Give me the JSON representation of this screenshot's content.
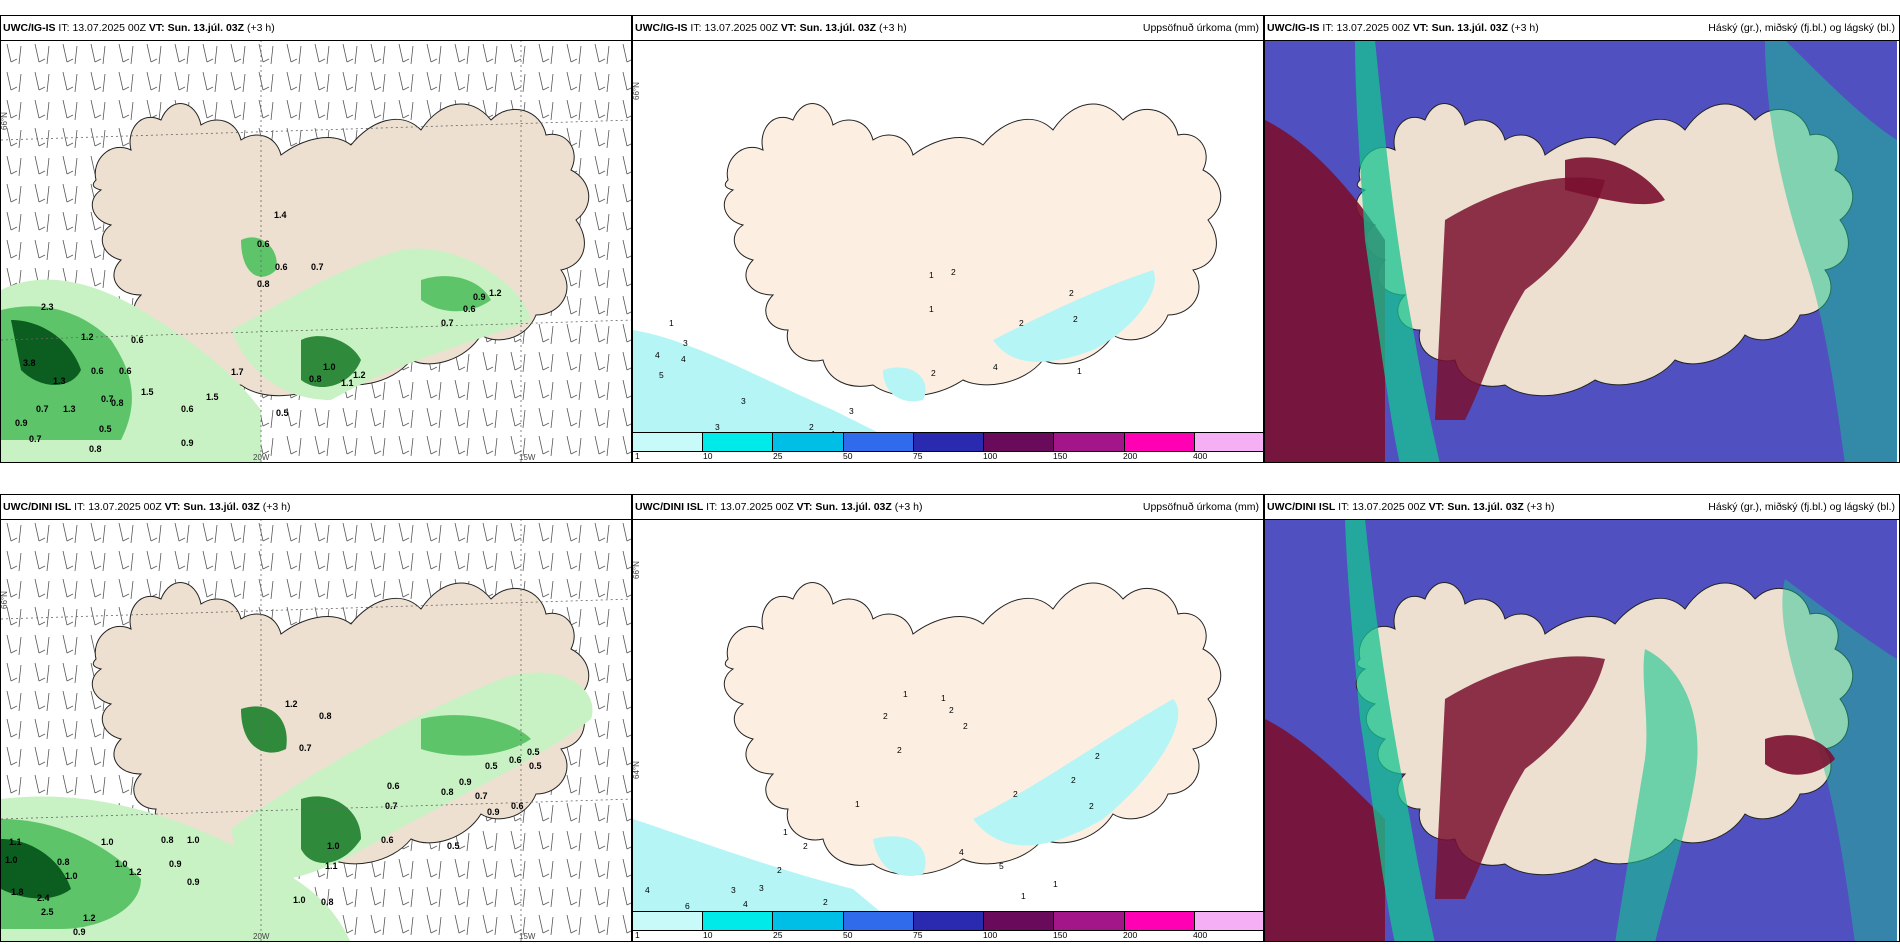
{
  "rows": [
    {
      "model": "UWC/IG-IS",
      "it_label": "IT:",
      "it_value": "13.07.2025 00Z",
      "vt_label": "VT:",
      "vt_value": "Sun. 13.júl. 03Z",
      "offset": "(+3 h)"
    },
    {
      "model": "UWC/DINI ISL",
      "it_label": "IT:",
      "it_value": "13.07.2025 00Z",
      "vt_label": "VT:",
      "vt_value": "Sun. 13.júl. 03Z",
      "offset": "(+3 h)"
    }
  ],
  "panel_titles": {
    "precip": "Uppsöfnuð úrkoma (mm)",
    "clouds": "Háský (gr.), miðský (fj.bl.) og lágský (bl.)"
  },
  "axis_labels": {
    "lat_66": "66°N",
    "lon_20": "20W",
    "lon_15": "15W",
    "lat_64": "64°N"
  },
  "colorbar": {
    "ticks": [
      "1",
      "10",
      "25",
      "50",
      "75",
      "100",
      "150",
      "200",
      "400"
    ],
    "colors": [
      "#c8fafa",
      "#00eaea",
      "#00bfe6",
      "#2f6bea",
      "#2a2ab0",
      "#6a0a5a",
      "#a3168a",
      "#ff00b4",
      "#f5b0f5"
    ]
  },
  "colors": {
    "land": "#ede0d0",
    "land_precip": "#fcefe2",
    "sea": "#ffffff",
    "green_light": "#c8f2c3",
    "green_mid": "#5ec46a",
    "green_dark": "#0b5e1f",
    "cyan_light": "#b5f5f5",
    "cloud_high": "#16c490",
    "cloud_mid": "#7a1030",
    "cloud_low": "#5050c0"
  },
  "precip_values_top": [
    "2.3",
    "1.2",
    "0.6",
    "0.6",
    "0.6",
    "3.8",
    "1.3",
    "0.7",
    "1.3",
    "0.7",
    "0.8",
    "1.5",
    "0.6",
    "1.5",
    "0.9",
    "0.7",
    "0.8",
    "1.4",
    "0.6",
    "0.8",
    "0.6",
    "0.7",
    "0.5",
    "1.0",
    "0.8",
    "1.1",
    "1.2",
    "1.7",
    "0.7",
    "0.6",
    "0.9",
    "1.2",
    "0.9",
    "0.5"
  ],
  "precip_values_bottom": [
    "1.1",
    "1.0",
    "1.8",
    "2.4",
    "2.5",
    "1.2",
    "0.9",
    "0.8",
    "1.0",
    "1.0",
    "0.8",
    "0.9",
    "1.0",
    "1.0",
    "0.9",
    "1.2",
    "1.2",
    "0.8",
    "0.7",
    "1.0",
    "1.1",
    "0.8",
    "1.0",
    "0.6",
    "0.7",
    "0.6",
    "0.8",
    "0.9",
    "0.7",
    "0.5",
    "0.5",
    "0.6",
    "0.5",
    "0.9",
    "0.6",
    "0.5"
  ],
  "accum_values_top": [
    "1",
    "3",
    "4",
    "4",
    "5",
    "3",
    "3",
    "2",
    "1",
    "3",
    "1",
    "2",
    "1",
    "2",
    "2",
    "4",
    "2",
    "2",
    "1"
  ],
  "accum_values_bottom": [
    "1",
    "1",
    "2",
    "2",
    "2",
    "1",
    "4",
    "2",
    "5",
    "2",
    "2",
    "2",
    "2",
    "1",
    "1",
    "3",
    "3",
    "4",
    "4",
    "6",
    "2",
    "2",
    "2",
    "1"
  ]
}
